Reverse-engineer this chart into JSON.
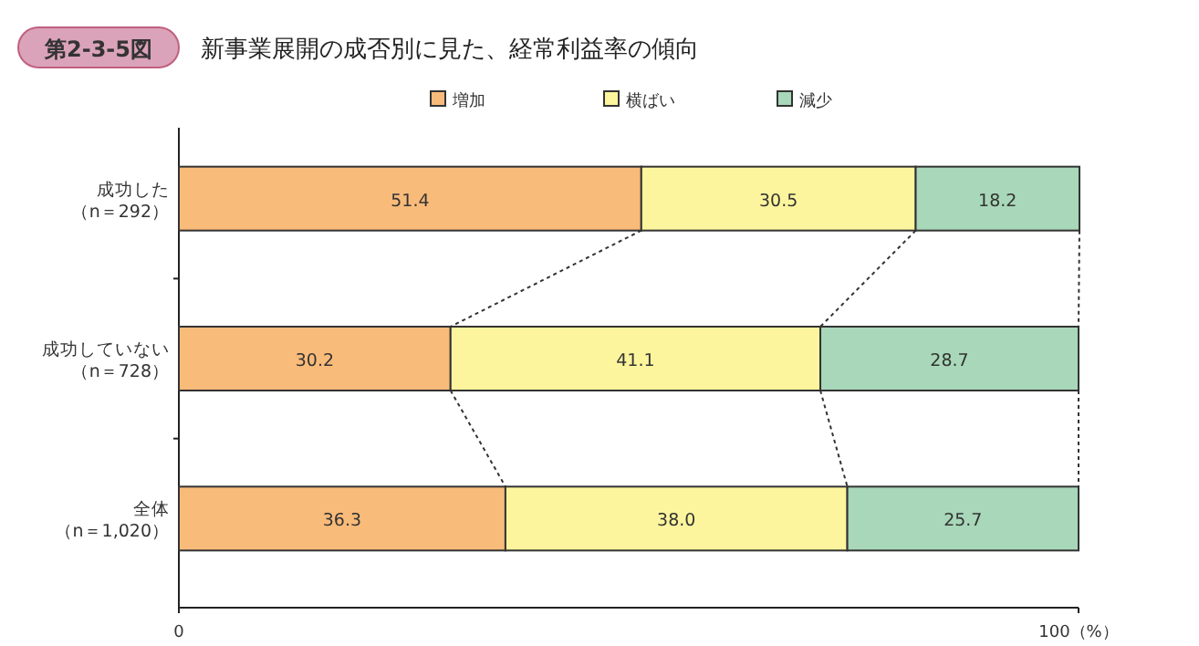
{
  "chart_data": {
    "type": "bar",
    "orientation": "horizontal",
    "stacked": true,
    "title": "新事業展開の成否別に見た、経常利益率の傾向",
    "annotations": [
      "第2-3-5図"
    ],
    "categories": [
      "成功した（n＝292）",
      "成功していない（n＝728）",
      "全体（n＝1,020）"
    ],
    "series": [
      {
        "name": "増加",
        "color": "#f9bb7a",
        "values": [
          51.4,
          30.2,
          36.3
        ]
      },
      {
        "name": "横ばい",
        "color": "#fdf59d",
        "values": [
          30.5,
          41.1,
          38.0
        ]
      },
      {
        "name": "減少",
        "color": "#a8d8b9",
        "values": [
          18.2,
          28.7,
          25.7
        ]
      }
    ],
    "xlim": [
      0,
      100
    ],
    "xticks": [
      0,
      {
        "value": 100,
        "label": "100（%）"
      }
    ],
    "value_labels": [
      [
        "51.4",
        "30.2",
        "36.3"
      ],
      [
        "30.5",
        "41.1",
        "38.0"
      ],
      [
        "18.2",
        "28.7",
        "25.7"
      ]
    ],
    "legend": "top",
    "grid": false
  }
}
